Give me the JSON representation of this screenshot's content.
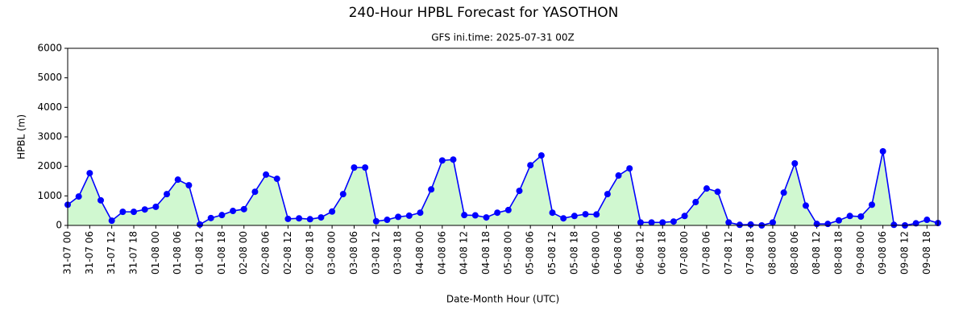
{
  "chart_data": {
    "type": "line",
    "title": "240-Hour HPBL Forecast for YASOTHON",
    "subtitle": "GFS ini.time: 2025-07-31 00Z",
    "x_label": "Date-Month Hour (UTC)",
    "y_label": "HPBL (m)",
    "categories": [
      "31-07 00",
      null,
      "31-07 06",
      null,
      "31-07 12",
      null,
      "31-07 18",
      null,
      "01-08 00",
      null,
      "01-08 06",
      null,
      "01-08 12",
      null,
      "01-08 18",
      null,
      "02-08 00",
      null,
      "02-08 06",
      null,
      "02-08 12",
      null,
      "02-08 18",
      null,
      "03-08 00",
      null,
      "03-08 06",
      null,
      "03-08 12",
      null,
      "03-08 18",
      null,
      "04-08 00",
      null,
      "04-08 06",
      null,
      "04-08 12",
      null,
      "04-08 18",
      null,
      "05-08 00",
      null,
      "05-08 06",
      null,
      "05-08 12",
      null,
      "05-08 18",
      null,
      "06-08 00",
      null,
      "06-08 06",
      null,
      "06-08 12",
      null,
      "06-08 18",
      null,
      "07-08 00",
      null,
      "07-08 06",
      null,
      "07-08 12",
      null,
      "07-08 18",
      null,
      "08-08 00",
      null,
      "08-08 06",
      null,
      "08-08 12",
      null,
      "08-08 18",
      null,
      "09-08 00",
      null,
      "09-08 06",
      null,
      "09-08 12",
      null,
      "09-08 18",
      null
    ],
    "series": [
      {
        "color": "#0000ff",
        "fill": "#d0f8d0",
        "values": [
          700,
          980,
          1770,
          850,
          160,
          460,
          460,
          540,
          630,
          1060,
          1550,
          1360,
          30,
          250,
          350,
          490,
          550,
          1140,
          1720,
          1580,
          220,
          240,
          210,
          270,
          470,
          1060,
          1960,
          1960,
          140,
          190,
          290,
          330,
          430,
          1220,
          2200,
          2230,
          350,
          340,
          270,
          430,
          520,
          1170,
          2040,
          2370,
          430,
          240,
          320,
          380,
          370,
          1060,
          1690,
          1930,
          100,
          100,
          100,
          130,
          320,
          790,
          1250,
          1140,
          100,
          20,
          30,
          0,
          100,
          1110,
          2100,
          670,
          50,
          50,
          170,
          320,
          300,
          700,
          2510,
          20,
          0,
          70,
          190,
          80
        ]
      }
    ],
    "ylim": [
      0,
      6000
    ],
    "yticks": [
      0,
      1000,
      2000,
      3000,
      4000,
      5000,
      6000
    ],
    "grid": false
  }
}
